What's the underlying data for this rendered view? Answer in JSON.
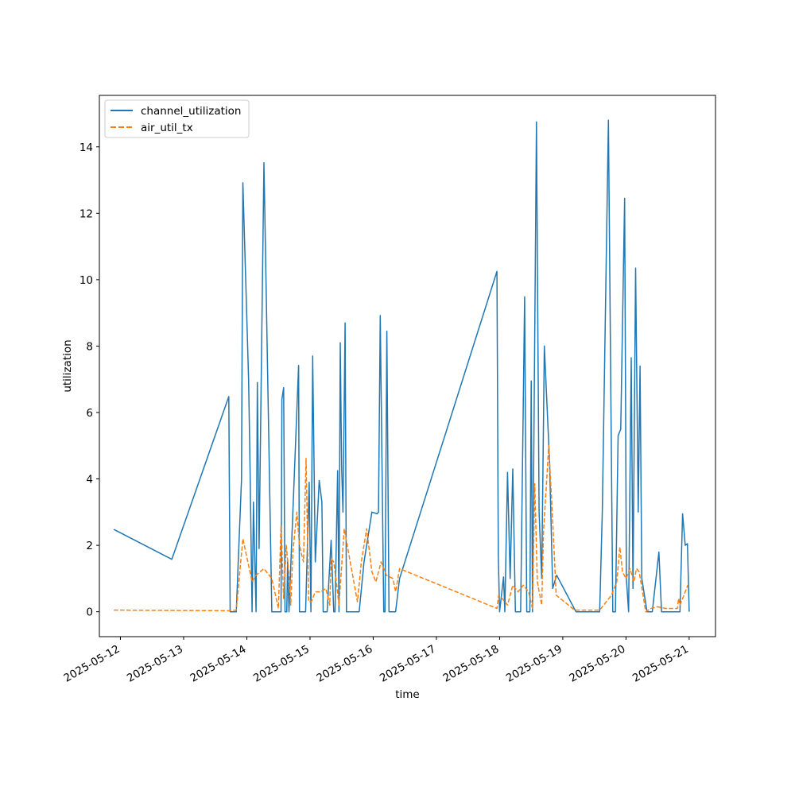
{
  "chart_data": {
    "type": "line",
    "title": "",
    "xlabel": "time",
    "ylabel": "utilization",
    "x_is_date": true,
    "xlim": [
      "2025-05-11T16:00",
      "2025-05-21T10:00"
    ],
    "ylim": [
      -0.75,
      15.55
    ],
    "x_ticks": [
      "2025-05-12",
      "2025-05-13",
      "2025-05-14",
      "2025-05-15",
      "2025-05-16",
      "2025-05-17",
      "2025-05-18",
      "2025-05-19",
      "2025-05-20",
      "2025-05-21"
    ],
    "y_ticks": [
      0,
      2,
      4,
      6,
      8,
      10,
      12,
      14
    ],
    "grid": false,
    "legend": {
      "placement": "top-left"
    },
    "series": [
      {
        "name": "channel_utilization",
        "color": "#1f77b4",
        "style": "solid",
        "points": [
          [
            "2025-05-11T21:30",
            2.48
          ],
          [
            "2025-05-12T19:30",
            1.58
          ],
          [
            "2025-05-13T17:10",
            6.48
          ],
          [
            "2025-05-13T17:40",
            0.0
          ],
          [
            "2025-05-13T20:00",
            0.0
          ],
          [
            "2025-05-13T22:00",
            4.0
          ],
          [
            "2025-05-13T22:30",
            12.92
          ],
          [
            "2025-05-14T00:40",
            7.0
          ],
          [
            "2025-05-14T01:10",
            4.7
          ],
          [
            "2025-05-14T02:00",
            0.0
          ],
          [
            "2025-05-14T02:30",
            3.3
          ],
          [
            "2025-05-14T03:30",
            0.0
          ],
          [
            "2025-05-14T04:00",
            6.9
          ],
          [
            "2025-05-14T04:40",
            1.9
          ],
          [
            "2025-05-14T06:30",
            13.52
          ],
          [
            "2025-05-14T09:30",
            0.0
          ],
          [
            "2025-05-14T12:30",
            0.0
          ],
          [
            "2025-05-14T13:00",
            0.0
          ],
          [
            "2025-05-14T13:20",
            6.4
          ],
          [
            "2025-05-14T14:00",
            6.75
          ],
          [
            "2025-05-14T14:30",
            0.0
          ],
          [
            "2025-05-14T15:10",
            0.0
          ],
          [
            "2025-05-14T15:30",
            1.5
          ],
          [
            "2025-05-14T16:00",
            0.0
          ],
          [
            "2025-05-14T19:40",
            7.42
          ],
          [
            "2025-05-14T20:00",
            0.0
          ],
          [
            "2025-05-14T22:20",
            0.0
          ],
          [
            "2025-05-14T23:40",
            3.9
          ],
          [
            "2025-05-15T00:20",
            0.0
          ],
          [
            "2025-05-15T01:00",
            7.7
          ],
          [
            "2025-05-15T02:00",
            1.5
          ],
          [
            "2025-05-15T03:30",
            3.95
          ],
          [
            "2025-05-15T04:30",
            3.3
          ],
          [
            "2025-05-15T05:00",
            0.0
          ],
          [
            "2025-05-15T06:30",
            0.0
          ],
          [
            "2025-05-15T08:00",
            2.15
          ],
          [
            "2025-05-15T09:00",
            0.0
          ],
          [
            "2025-05-15T09:30",
            0.0
          ],
          [
            "2025-05-15T10:30",
            4.25
          ],
          [
            "2025-05-15T11:00",
            0.0
          ],
          [
            "2025-05-15T11:30",
            8.1
          ],
          [
            "2025-05-15T12:00",
            4.4
          ],
          [
            "2025-05-15T12:30",
            3.0
          ],
          [
            "2025-05-15T13:20",
            8.7
          ],
          [
            "2025-05-15T13:50",
            0.0
          ],
          [
            "2025-05-15T18:40",
            0.0
          ],
          [
            "2025-05-15T20:30",
            1.5
          ],
          [
            "2025-05-15T23:30",
            3.0
          ],
          [
            "2025-05-16T01:30",
            2.95
          ],
          [
            "2025-05-16T02:00",
            3.0
          ],
          [
            "2025-05-16T02:40",
            8.92
          ],
          [
            "2025-05-16T04:00",
            0.0
          ],
          [
            "2025-05-16T04:30",
            0.0
          ],
          [
            "2025-05-16T05:10",
            8.45
          ],
          [
            "2025-05-16T06:00",
            0.0
          ],
          [
            "2025-05-16T08:30",
            0.0
          ],
          [
            "2025-05-16T10:00",
            1.0
          ],
          [
            "2025-05-17T23:00",
            10.25
          ],
          [
            "2025-05-17T23:30",
            1.7
          ],
          [
            "2025-05-18T00:00",
            0.0
          ],
          [
            "2025-05-18T01:30",
            1.05
          ],
          [
            "2025-05-18T02:00",
            0.0
          ],
          [
            "2025-05-18T03:00",
            4.2
          ],
          [
            "2025-05-18T04:00",
            1.0
          ],
          [
            "2025-05-18T05:00",
            4.3
          ],
          [
            "2025-05-18T06:00",
            0.0
          ],
          [
            "2025-05-18T08:00",
            0.0
          ],
          [
            "2025-05-18T09:30",
            9.48
          ],
          [
            "2025-05-18T10:20",
            0.0
          ],
          [
            "2025-05-18T11:30",
            0.0
          ],
          [
            "2025-05-18T12:00",
            6.95
          ],
          [
            "2025-05-18T12:30",
            0.0
          ],
          [
            "2025-05-18T14:00",
            14.75
          ],
          [
            "2025-05-18T15:00",
            3.0
          ],
          [
            "2025-05-18T16:00",
            1.0
          ],
          [
            "2025-05-18T17:00",
            8.0
          ],
          [
            "2025-05-18T19:00",
            4.5
          ],
          [
            "2025-05-18T20:10",
            0.7
          ],
          [
            "2025-05-18T21:40",
            1.1
          ],
          [
            "2025-05-19T05:00",
            0.0
          ],
          [
            "2025-05-19T10:30",
            0.0
          ],
          [
            "2025-05-19T14:00",
            0.0
          ],
          [
            "2025-05-19T15:00",
            3.0
          ],
          [
            "2025-05-19T17:20",
            14.8
          ],
          [
            "2025-05-19T19:00",
            0.0
          ],
          [
            "2025-05-19T20:00",
            0.0
          ],
          [
            "2025-05-19T21:00",
            5.3
          ],
          [
            "2025-05-19T22:00",
            5.5
          ],
          [
            "2025-05-19T23:30",
            12.45
          ],
          [
            "2025-05-20T00:10",
            1.0
          ],
          [
            "2025-05-20T01:00",
            0.0
          ],
          [
            "2025-05-20T02:00",
            7.65
          ],
          [
            "2025-05-20T02:40",
            0.7
          ],
          [
            "2025-05-20T03:40",
            10.35
          ],
          [
            "2025-05-20T04:40",
            3.0
          ],
          [
            "2025-05-20T05:20",
            7.4
          ],
          [
            "2025-05-20T06:00",
            1.0
          ],
          [
            "2025-05-20T08:00",
            0.0
          ],
          [
            "2025-05-20T10:00",
            0.0
          ],
          [
            "2025-05-20T12:30",
            1.8
          ],
          [
            "2025-05-20T13:30",
            0.0
          ],
          [
            "2025-05-20T18:00",
            0.0
          ],
          [
            "2025-05-20T20:30",
            0.0
          ],
          [
            "2025-05-20T21:30",
            2.95
          ],
          [
            "2025-05-20T22:30",
            2.0
          ],
          [
            "2025-05-20T23:20",
            2.05
          ],
          [
            "2025-05-21T00:00",
            0.0
          ]
        ]
      },
      {
        "name": "air_util_tx",
        "color": "#ff7f0e",
        "style": "dashed",
        "points": [
          [
            "2025-05-11T21:30",
            0.05
          ],
          [
            "2025-05-12T19:30",
            0.04
          ],
          [
            "2025-05-13T17:10",
            0.03
          ],
          [
            "2025-05-13T20:00",
            0.05
          ],
          [
            "2025-05-13T22:30",
            2.2
          ],
          [
            "2025-05-14T00:40",
            1.4
          ],
          [
            "2025-05-14T02:00",
            0.9
          ],
          [
            "2025-05-14T03:30",
            1.1
          ],
          [
            "2025-05-14T06:30",
            1.3
          ],
          [
            "2025-05-14T09:30",
            1.0
          ],
          [
            "2025-05-14T12:00",
            0.1
          ],
          [
            "2025-05-14T13:00",
            2.6
          ],
          [
            "2025-05-14T14:00",
            0.4
          ],
          [
            "2025-05-14T15:00",
            2.0
          ],
          [
            "2025-05-14T16:00",
            1.1
          ],
          [
            "2025-05-14T16:40",
            0.2
          ],
          [
            "2025-05-14T17:30",
            1.8
          ],
          [
            "2025-05-14T19:00",
            3.0
          ],
          [
            "2025-05-14T20:00",
            2.0
          ],
          [
            "2025-05-14T21:30",
            1.5
          ],
          [
            "2025-05-14T22:30",
            4.62
          ],
          [
            "2025-05-14T23:30",
            0.3
          ],
          [
            "2025-05-15T00:30",
            0.3
          ],
          [
            "2025-05-15T02:00",
            0.6
          ],
          [
            "2025-05-15T04:00",
            0.6
          ],
          [
            "2025-05-15T06:00",
            0.7
          ],
          [
            "2025-05-15T07:30",
            0.2
          ],
          [
            "2025-05-15T08:00",
            1.6
          ],
          [
            "2025-05-15T09:00",
            1.5
          ],
          [
            "2025-05-15T10:00",
            0.9
          ],
          [
            "2025-05-15T11:00",
            0.2
          ],
          [
            "2025-05-15T13:00",
            2.5
          ],
          [
            "2025-05-15T18:00",
            0.3
          ],
          [
            "2025-05-15T19:30",
            1.5
          ],
          [
            "2025-05-15T21:30",
            2.5
          ],
          [
            "2025-05-15T23:30",
            1.2
          ],
          [
            "2025-05-16T01:00",
            0.9
          ],
          [
            "2025-05-16T03:00",
            1.5
          ],
          [
            "2025-05-16T05:00",
            1.1
          ],
          [
            "2025-05-16T07:30",
            1.0
          ],
          [
            "2025-05-16T08:30",
            0.6
          ],
          [
            "2025-05-16T10:00",
            1.3
          ],
          [
            "2025-05-17T23:00",
            0.1
          ],
          [
            "2025-05-17T23:40",
            0.5
          ],
          [
            "2025-05-18T01:00",
            0.4
          ],
          [
            "2025-05-18T03:00",
            0.2
          ],
          [
            "2025-05-18T05:00",
            0.8
          ],
          [
            "2025-05-18T07:00",
            0.6
          ],
          [
            "2025-05-18T09:00",
            0.8
          ],
          [
            "2025-05-18T11:00",
            0.6
          ],
          [
            "2025-05-18T12:30",
            0.1
          ],
          [
            "2025-05-18T13:20",
            3.85
          ],
          [
            "2025-05-18T14:20",
            0.9
          ],
          [
            "2025-05-18T16:00",
            0.2
          ],
          [
            "2025-05-18T16:40",
            2.4
          ],
          [
            "2025-05-18T18:00",
            4.1
          ],
          [
            "2025-05-18T18:40",
            5.0
          ],
          [
            "2025-05-18T20:00",
            3.0
          ],
          [
            "2025-05-18T21:30",
            0.5
          ],
          [
            "2025-05-19T04:30",
            0.05
          ],
          [
            "2025-05-19T14:00",
            0.05
          ],
          [
            "2025-05-19T18:30",
            0.5
          ],
          [
            "2025-05-19T20:30",
            0.9
          ],
          [
            "2025-05-19T21:40",
            1.95
          ],
          [
            "2025-05-19T22:40",
            1.2
          ],
          [
            "2025-05-20T00:00",
            1.0
          ],
          [
            "2025-05-20T01:30",
            1.3
          ],
          [
            "2025-05-20T03:00",
            0.9
          ],
          [
            "2025-05-20T04:00",
            1.3
          ],
          [
            "2025-05-20T05:00",
            1.2
          ],
          [
            "2025-05-20T06:30",
            0.5
          ],
          [
            "2025-05-20T07:30",
            0.0
          ],
          [
            "2025-05-20T09:30",
            0.1
          ],
          [
            "2025-05-20T12:00",
            0.15
          ],
          [
            "2025-05-20T15:00",
            0.1
          ],
          [
            "2025-05-20T18:00",
            0.1
          ],
          [
            "2025-05-20T19:30",
            0.1
          ],
          [
            "2025-05-20T20:00",
            0.4
          ],
          [
            "2025-05-20T20:30",
            0.2
          ],
          [
            "2025-05-20T22:00",
            0.5
          ],
          [
            "2025-05-20T23:30",
            0.8
          ]
        ]
      }
    ]
  }
}
